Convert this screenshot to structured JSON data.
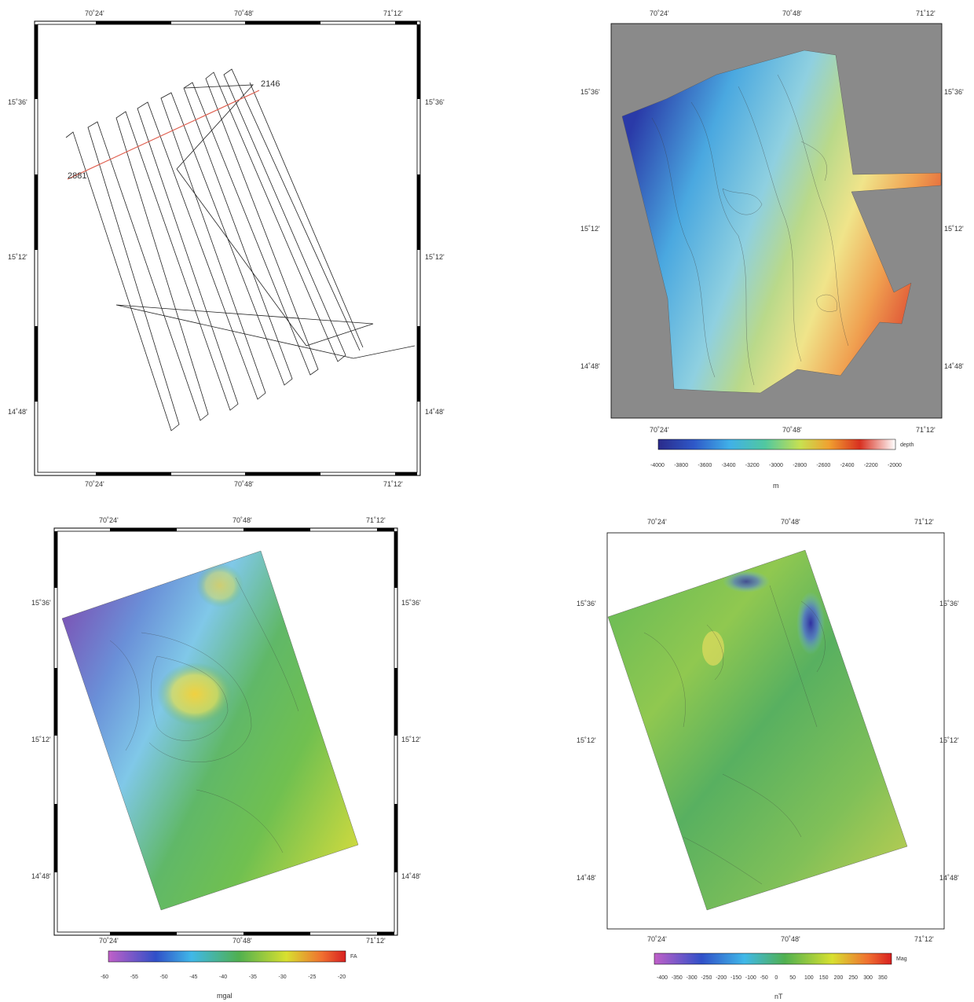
{
  "figure": {
    "lon_ticks": [
      "70˚24'",
      "70˚48'",
      "71˚12'"
    ],
    "lat_ticks": [
      "15˚36'",
      "15˚12'",
      "14˚48'"
    ]
  },
  "track_map": {
    "line_labels": [
      "2146",
      "2881"
    ]
  },
  "bathymetry_map": {
    "colorbar_title": "depth",
    "colorbar_ticks": [
      "-4000",
      "-3800",
      "-3600",
      "-3400",
      "-3200",
      "-3000",
      "-2800",
      "-2600",
      "-2400",
      "-2200",
      "-2000"
    ],
    "unit": "m",
    "colors": {
      "deep": "#2c3aa8",
      "shallow": "#d83a2a",
      "background": "#8a8a8a"
    }
  },
  "gravity_map": {
    "colorbar_title": "FA",
    "colorbar_ticks": [
      "-60",
      "-55",
      "-50",
      "-45",
      "-40",
      "-35",
      "-30",
      "-25",
      "-20"
    ],
    "unit": "mgal"
  },
  "magnetic_map": {
    "colorbar_title": "Mag",
    "colorbar_ticks": [
      "-400",
      "-350",
      "-300",
      "-250",
      "-200",
      "-150",
      "-100",
      "-50",
      "0",
      "50",
      "100",
      "150",
      "200",
      "250",
      "300",
      "350"
    ],
    "unit": "nT"
  }
}
